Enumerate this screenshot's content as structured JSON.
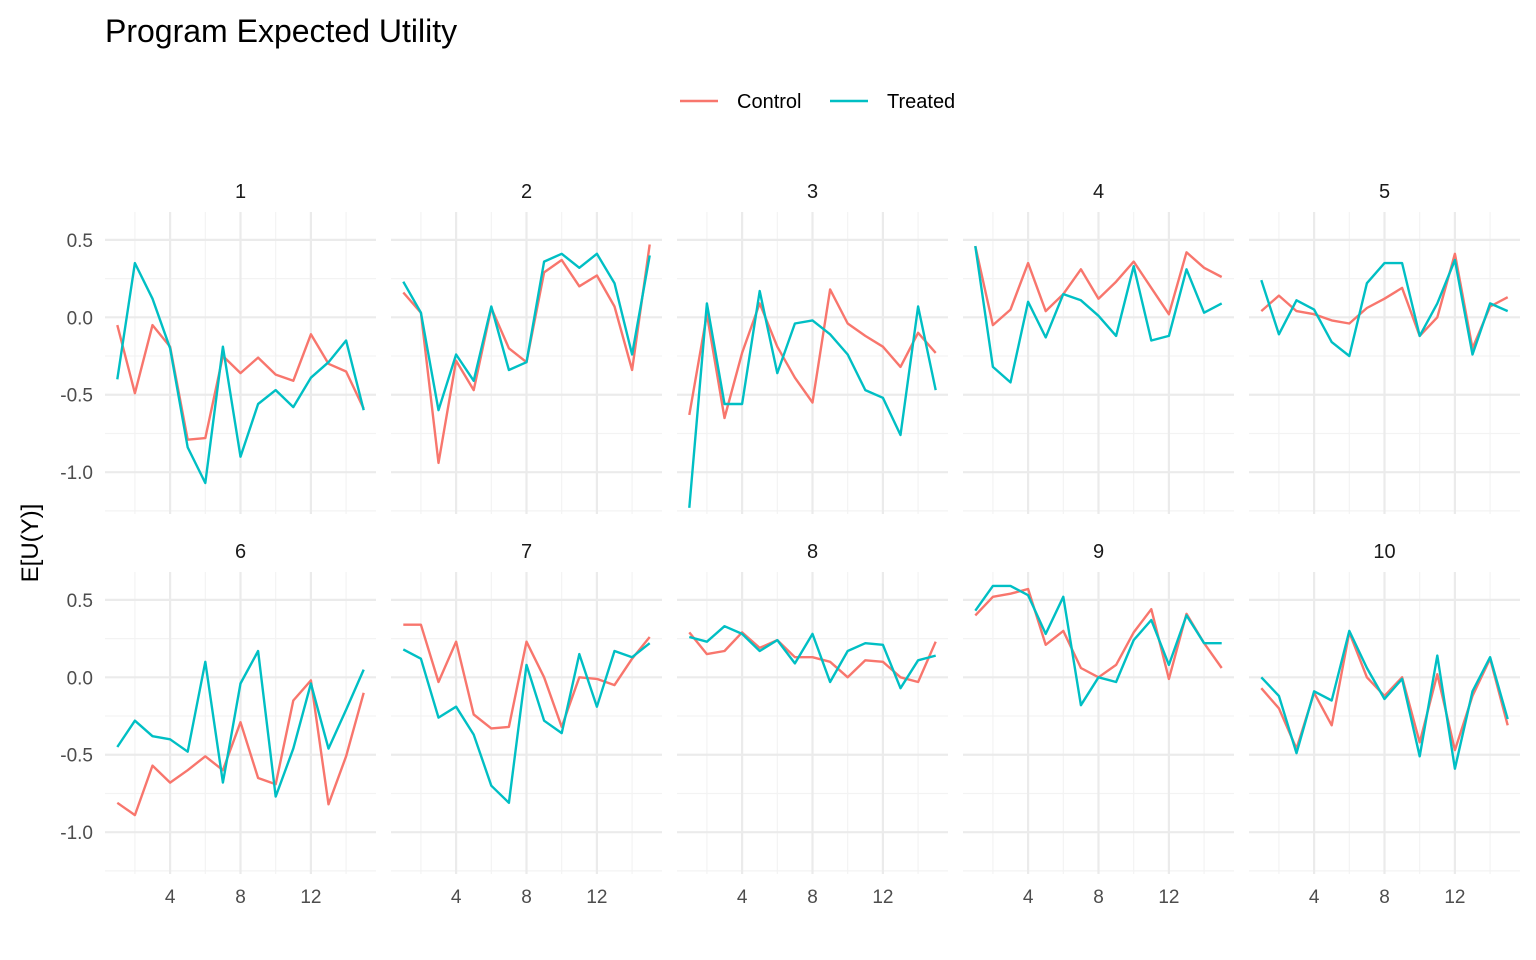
{
  "chart_data": {
    "type": "line",
    "title": "Program Expected Utility",
    "ylabel": "E[U(Y)]",
    "xlabel": "",
    "x": [
      1,
      2,
      3,
      4,
      5,
      6,
      7,
      8,
      9,
      10,
      11,
      12,
      13,
      14,
      15
    ],
    "xlim": [
      0.3,
      15.7
    ],
    "ylim": [
      -1.27,
      0.68
    ],
    "x_ticks": [
      4,
      8,
      12
    ],
    "x_tick_labels": [
      "4",
      "8",
      "12"
    ],
    "y_ticks": [
      0.5,
      0.0,
      -0.5,
      -1.0
    ],
    "y_tick_labels": [
      "0.5",
      "0.0",
      "-0.5",
      "-1.0"
    ],
    "grid": true,
    "legend_position": "top",
    "series_meta": [
      {
        "name": "Control",
        "color": "#F8766D"
      },
      {
        "name": "Treated",
        "color": "#00BFC4"
      }
    ],
    "facets": [
      {
        "label": "1",
        "control": [
          -0.05,
          -0.49,
          -0.05,
          -0.19,
          -0.79,
          -0.78,
          -0.25,
          -0.36,
          -0.26,
          -0.37,
          -0.41,
          -0.11,
          -0.3,
          -0.35,
          -0.59
        ],
        "treated": [
          -0.4,
          0.35,
          0.12,
          -0.2,
          -0.84,
          -1.07,
          -0.19,
          -0.9,
          -0.56,
          -0.47,
          -0.58,
          -0.39,
          -0.29,
          -0.15,
          -0.6
        ]
      },
      {
        "label": "2",
        "control": [
          0.16,
          0.03,
          -0.94,
          -0.28,
          -0.47,
          0.06,
          -0.2,
          -0.29,
          0.29,
          0.37,
          0.2,
          0.27,
          0.07,
          -0.34,
          0.47
        ],
        "treated": [
          0.23,
          0.03,
          -0.6,
          -0.24,
          -0.41,
          0.07,
          -0.34,
          -0.29,
          0.36,
          0.41,
          0.32,
          0.41,
          0.22,
          -0.24,
          0.4
        ]
      },
      {
        "label": "3",
        "control": [
          -0.63,
          0.02,
          -0.65,
          -0.23,
          0.09,
          -0.19,
          -0.39,
          -0.55,
          0.18,
          -0.04,
          -0.12,
          -0.19,
          -0.32,
          -0.1,
          -0.23
        ],
        "treated": [
          -1.23,
          0.09,
          -0.56,
          -0.56,
          0.17,
          -0.36,
          -0.04,
          -0.02,
          -0.11,
          -0.24,
          -0.47,
          -0.52,
          -0.76,
          0.07,
          -0.47
        ]
      },
      {
        "label": "4",
        "control": [
          0.46,
          -0.05,
          0.05,
          0.35,
          0.04,
          0.15,
          0.31,
          0.12,
          0.23,
          0.36,
          0.19,
          0.02,
          0.42,
          0.32,
          0.26
        ],
        "treated": [
          0.46,
          -0.32,
          -0.42,
          0.1,
          -0.13,
          0.15,
          0.11,
          0.01,
          -0.12,
          0.33,
          -0.15,
          -0.12,
          0.31,
          0.03,
          0.09
        ]
      },
      {
        "label": "5",
        "control": [
          0.04,
          0.14,
          0.04,
          0.02,
          -0.02,
          -0.04,
          0.06,
          0.12,
          0.19,
          -0.12,
          0.0,
          0.41,
          -0.2,
          0.07,
          0.13
        ],
        "treated": [
          0.24,
          -0.11,
          0.11,
          0.05,
          -0.16,
          -0.25,
          0.22,
          0.35,
          0.35,
          -0.12,
          0.09,
          0.37,
          -0.24,
          0.09,
          0.04
        ]
      },
      {
        "label": "6",
        "control": [
          -0.81,
          -0.89,
          -0.57,
          -0.68,
          -0.6,
          -0.51,
          -0.6,
          -0.29,
          -0.65,
          -0.69,
          -0.15,
          -0.02,
          -0.82,
          -0.51,
          -0.1
        ],
        "treated": [
          -0.45,
          -0.28,
          -0.38,
          -0.4,
          -0.48,
          0.1,
          -0.68,
          -0.04,
          0.17,
          -0.77,
          -0.46,
          -0.04,
          -0.46,
          -0.21,
          0.05
        ]
      },
      {
        "label": "7",
        "control": [
          0.34,
          0.34,
          -0.03,
          0.23,
          -0.24,
          -0.33,
          -0.32,
          0.23,
          0.0,
          -0.32,
          0.0,
          -0.01,
          -0.05,
          0.12,
          0.26
        ],
        "treated": [
          0.18,
          0.12,
          -0.26,
          -0.19,
          -0.37,
          -0.7,
          -0.81,
          0.08,
          -0.28,
          -0.36,
          0.15,
          -0.19,
          0.17,
          0.13,
          0.22
        ]
      },
      {
        "label": "8",
        "control": [
          0.29,
          0.15,
          0.17,
          0.29,
          0.19,
          0.24,
          0.13,
          0.13,
          0.1,
          0.0,
          0.11,
          0.1,
          0.0,
          -0.03,
          0.23
        ],
        "treated": [
          0.26,
          0.23,
          0.33,
          0.28,
          0.17,
          0.24,
          0.09,
          0.28,
          -0.03,
          0.17,
          0.22,
          0.21,
          -0.07,
          0.11,
          0.14
        ]
      },
      {
        "label": "9",
        "control": [
          0.4,
          0.52,
          0.54,
          0.57,
          0.21,
          0.3,
          0.06,
          0.0,
          0.08,
          0.29,
          0.44,
          -0.01,
          0.41,
          0.22,
          0.06
        ],
        "treated": [
          0.43,
          0.59,
          0.59,
          0.53,
          0.28,
          0.52,
          -0.18,
          0.0,
          -0.03,
          0.24,
          0.37,
          0.08,
          0.4,
          0.22,
          0.22
        ]
      },
      {
        "label": "10",
        "control": [
          -0.07,
          -0.2,
          -0.46,
          -0.1,
          -0.31,
          0.29,
          0.0,
          -0.12,
          0.0,
          -0.42,
          0.02,
          -0.47,
          -0.12,
          0.12,
          -0.31
        ],
        "treated": [
          0.0,
          -0.12,
          -0.49,
          -0.09,
          -0.15,
          0.3,
          0.06,
          -0.14,
          -0.01,
          -0.51,
          0.14,
          -0.59,
          -0.09,
          0.13,
          -0.27
        ]
      }
    ]
  }
}
